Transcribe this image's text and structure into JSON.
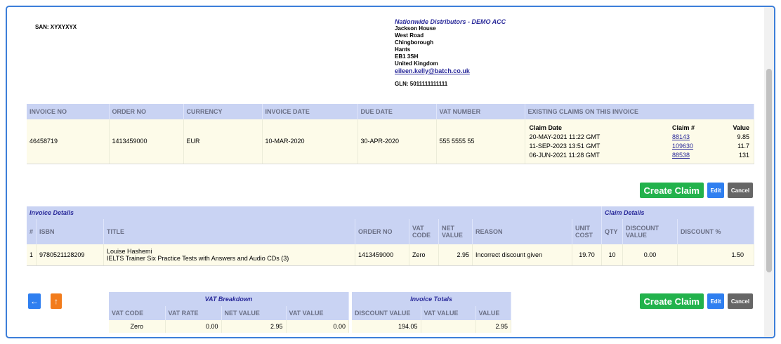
{
  "san": "SAN: XYXYXYX",
  "supplier": {
    "company": "Nationwide Distributors - DEMO ACC",
    "lines": [
      "Jackson House",
      "West Road",
      "Chingborough",
      "Hants",
      "EB1 3SH",
      "United Kingdom"
    ],
    "email": "eileen.kelly@batch.co.uk",
    "gln": "GLN: 5011111111111"
  },
  "invoice": {
    "headers": [
      "INVOICE NO",
      "ORDER NO",
      "CURRENCY",
      "INVOICE DATE",
      "DUE DATE",
      "VAT NUMBER",
      "EXISTING CLAIMS ON THIS INVOICE"
    ],
    "invoice_no": "46458719",
    "order_no": "1413459000",
    "currency": "EUR",
    "invoice_date": "10-MAR-2020",
    "due_date": "30-APR-2020",
    "vat_number": "555 5555 55",
    "claims_headers": [
      "Claim Date",
      "Claim #",
      "Value"
    ],
    "claims": [
      {
        "date": "20-MAY-2021 11:22 GMT",
        "claim_no": "88143",
        "value": "9.85"
      },
      {
        "date": "11-SEP-2023 13:51 GMT",
        "claim_no": "109630",
        "value": "11.7"
      },
      {
        "date": "06-JUN-2021 11:28 GMT",
        "claim_no": "88538",
        "value": "131"
      }
    ]
  },
  "buttons": {
    "create": "Create Claim",
    "edit": "Edit",
    "cancel": "Cancel",
    "back": "←",
    "top": "↑"
  },
  "details": {
    "section_invoice": "Invoice Details",
    "section_claim": "Claim Details",
    "headers": [
      "#",
      "ISBN",
      "TITLE",
      "ORDER NO",
      "VAT CODE",
      "NET VALUE",
      "REASON",
      "UNIT COST",
      "QTY",
      "DISCOUNT VALUE",
      "DISCOUNT %"
    ],
    "row": {
      "num": "1",
      "isbn": "9780521128209",
      "author": "Louise Hashemi",
      "title": "IELTS Trainer Six Practice Tests with Answers and Audio CDs (3)",
      "order_no": "1413459000",
      "vat_code": "Zero",
      "net_value": "2.95",
      "reason": "Incorrect discount given",
      "unit_cost": "19.70",
      "qty": "10",
      "discount_value": "0.00",
      "discount_pct": "1.50"
    }
  },
  "vat_breakdown": {
    "caption": "VAT Breakdown",
    "headers": [
      "VAT CODE",
      "VAT RATE",
      "NET VALUE",
      "VAT VALUE"
    ],
    "row": {
      "vat_code": "Zero",
      "vat_rate": "0.00",
      "net_value": "2.95",
      "vat_value": "0.00"
    }
  },
  "invoice_totals": {
    "caption": "Invoice Totals",
    "headers": [
      "DISCOUNT VALUE",
      "VAT VALUE",
      "VALUE"
    ],
    "row": {
      "discount_value": "194.05",
      "vat_value": "",
      "value": "2.95"
    }
  }
}
